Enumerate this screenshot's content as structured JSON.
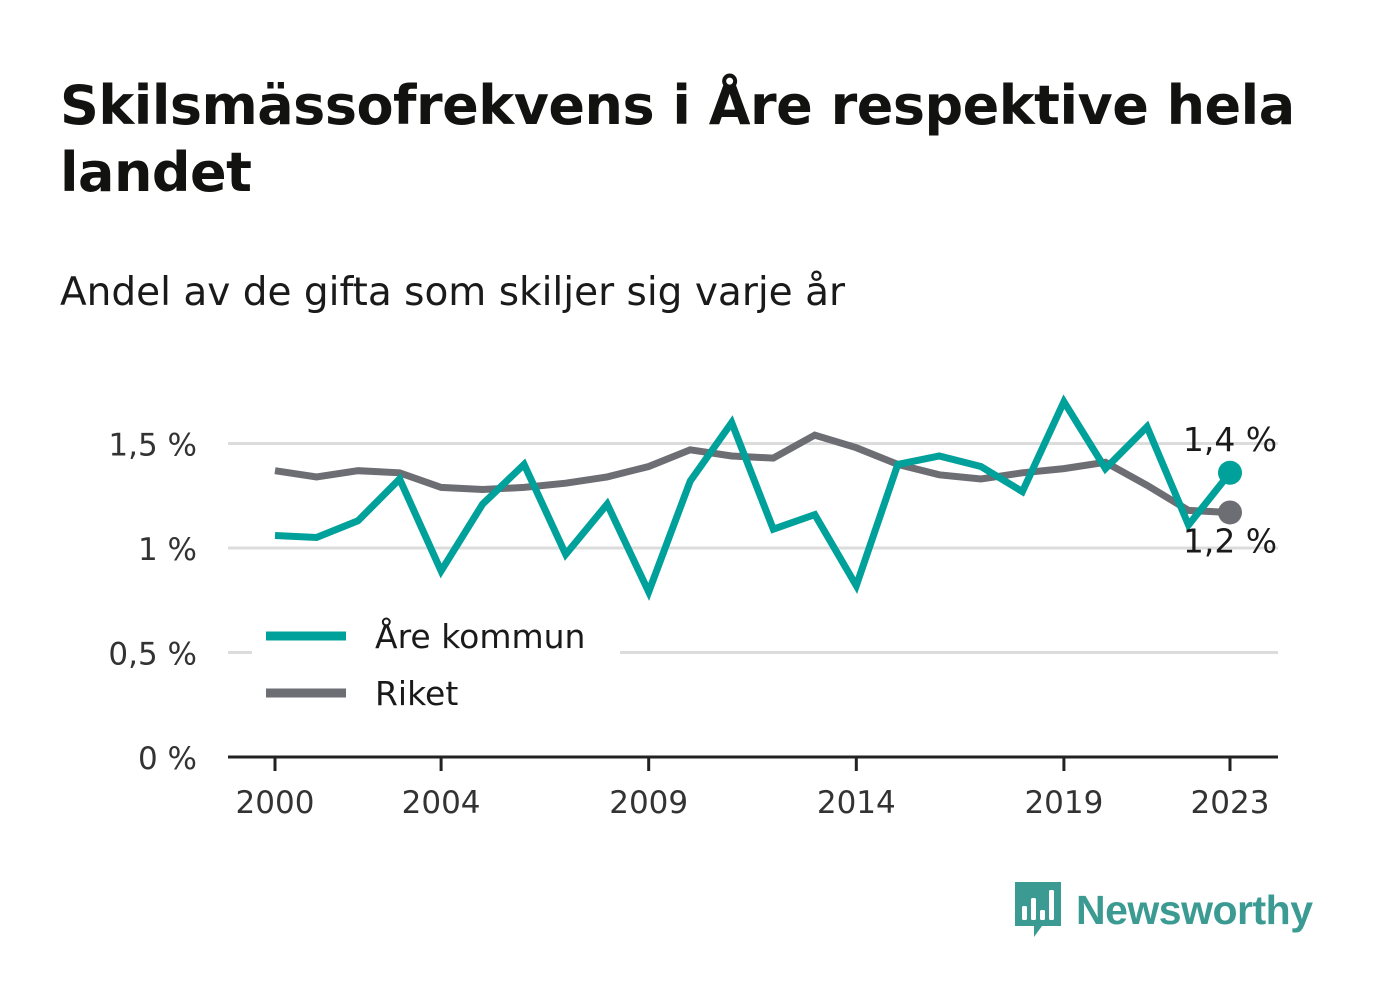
{
  "title": "Skilsmässofrekvens i Åre respektive hela landet",
  "subtitle": "Andel av de gifta som skiljer sig varje år",
  "brand": {
    "name": "Newsworthy",
    "logo_icon": "bar-chart-speech-bubble-icon"
  },
  "colors": {
    "are": "#00a19a",
    "riket": "#6d6d74",
    "grid": "#dcdcdc",
    "axis": "#222222"
  },
  "chart_data": {
    "type": "line",
    "x": [
      2000,
      2001,
      2002,
      2003,
      2004,
      2005,
      2006,
      2007,
      2008,
      2009,
      2010,
      2011,
      2012,
      2013,
      2014,
      2015,
      2016,
      2017,
      2018,
      2019,
      2020,
      2021,
      2022,
      2023
    ],
    "x_ticks": [
      {
        "value": 2000,
        "label": "2000"
      },
      {
        "value": 2004,
        "label": "2004"
      },
      {
        "value": 2009,
        "label": "2009"
      },
      {
        "value": 2014,
        "label": "2014"
      },
      {
        "value": 2019,
        "label": "2019"
      },
      {
        "value": 2023,
        "label": "2023"
      }
    ],
    "y_ticks": [
      {
        "value": 0,
        "label": "0 %"
      },
      {
        "value": 0.5,
        "label": "0,5 %"
      },
      {
        "value": 1,
        "label": "1 %"
      },
      {
        "value": 1.5,
        "label": "1,5 %"
      }
    ],
    "ylim": [
      0,
      1.8
    ],
    "grid": true,
    "legend_position": "bottom-left",
    "series": [
      {
        "name": "Åre kommun",
        "color": "#00a19a",
        "values": [
          1.06,
          1.05,
          1.13,
          1.33,
          0.89,
          1.21,
          1.4,
          0.97,
          1.21,
          0.79,
          1.32,
          1.6,
          1.09,
          1.16,
          0.82,
          1.4,
          1.44,
          1.39,
          1.27,
          1.7,
          1.38,
          1.58,
          1.11,
          1.36
        ],
        "end_label": "1,4 %"
      },
      {
        "name": "Riket",
        "color": "#6d6d74",
        "values": [
          1.37,
          1.34,
          1.37,
          1.36,
          1.29,
          1.28,
          1.29,
          1.31,
          1.34,
          1.39,
          1.47,
          1.44,
          1.43,
          1.54,
          1.48,
          1.4,
          1.35,
          1.33,
          1.36,
          1.38,
          1.41,
          1.3,
          1.18,
          1.17
        ],
        "end_label": "1,2 %"
      }
    ]
  }
}
